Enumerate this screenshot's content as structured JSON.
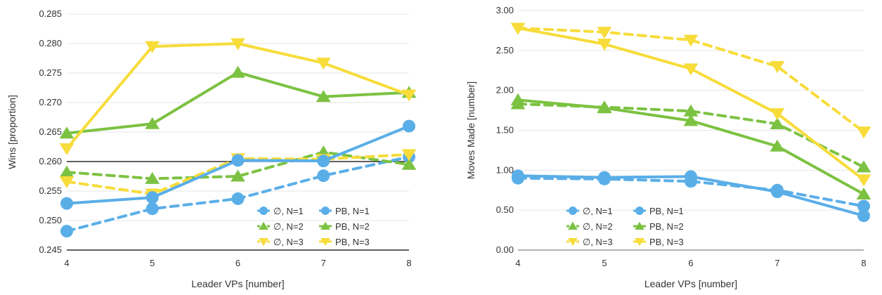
{
  "colors": {
    "blue": "#5aaee8",
    "green": "#7cc242",
    "yellow": "#f7dc3a",
    "grid": "#e6e6e6",
    "ref": "#000000"
  },
  "chart_data": [
    {
      "type": "line",
      "xlabel": "Leader VPs [number]",
      "ylabel": "Wins [proportion]",
      "x": [
        4,
        5,
        6,
        7,
        8
      ],
      "ylim": [
        0.245,
        0.285
      ],
      "yticks": [
        "0.245",
        "0.250",
        "0.255",
        "0.260",
        "0.265",
        "0.270",
        "0.275",
        "0.280",
        "0.285"
      ],
      "xticks": [
        "4",
        "5",
        "6",
        "7",
        "8"
      ],
      "reference_lines": [
        0.245,
        0.26
      ],
      "grid": true,
      "legend_position": "bottom-right",
      "series": [
        {
          "name": "∅, N=1",
          "style": "dashed",
          "marker": "circle",
          "color": "blue",
          "values": [
            0.2482,
            0.252,
            0.2537,
            0.2576,
            0.2608
          ]
        },
        {
          "name": "PB, N=1",
          "style": "solid",
          "marker": "circle",
          "color": "blue",
          "values": [
            0.2529,
            0.2539,
            0.2602,
            0.2601,
            0.266
          ]
        },
        {
          "name": "∅, N=2",
          "style": "dashed",
          "marker": "triangle-up",
          "color": "green",
          "values": [
            0.2582,
            0.2571,
            0.2575,
            0.2616,
            0.2595
          ]
        },
        {
          "name": "PB, N=2",
          "style": "solid",
          "marker": "triangle-up",
          "color": "green",
          "values": [
            0.2648,
            0.2664,
            0.2751,
            0.271,
            0.2717
          ]
        },
        {
          "name": "∅, N=3",
          "style": "dashed",
          "marker": "triangle-down",
          "color": "yellow",
          "values": [
            0.2566,
            0.2545,
            0.2605,
            0.2604,
            0.2612
          ]
        },
        {
          "name": "PB, N=3",
          "style": "solid",
          "marker": "triangle-down",
          "color": "yellow",
          "values": [
            0.2622,
            0.2795,
            0.28,
            0.2767,
            0.2713
          ]
        }
      ]
    },
    {
      "type": "line",
      "xlabel": "Leader VPs [number]",
      "ylabel": "Moves Made [number]",
      "x": [
        4,
        5,
        6,
        7,
        8
      ],
      "ylim": [
        0.0,
        3.0
      ],
      "yticks": [
        "0.00",
        "0.50",
        "1.00",
        "1.50",
        "2.00",
        "2.50",
        "3.00"
      ],
      "xticks": [
        "4",
        "5",
        "6",
        "7",
        "8"
      ],
      "reference_lines": [
        0.0
      ],
      "grid": true,
      "legend_position": "bottom-center",
      "series": [
        {
          "name": "∅, N=1",
          "style": "dashed",
          "marker": "circle",
          "color": "blue",
          "values": [
            0.9,
            0.89,
            0.86,
            0.75,
            0.55
          ]
        },
        {
          "name": "PB, N=1",
          "style": "solid",
          "marker": "circle",
          "color": "blue",
          "values": [
            0.93,
            0.91,
            0.92,
            0.73,
            0.43
          ]
        },
        {
          "name": "∅, N=2",
          "style": "dashed",
          "marker": "triangle-up",
          "color": "green",
          "values": [
            1.83,
            1.79,
            1.74,
            1.58,
            1.04
          ]
        },
        {
          "name": "PB, N=2",
          "style": "solid",
          "marker": "triangle-up",
          "color": "green",
          "values": [
            1.88,
            1.78,
            1.62,
            1.3,
            0.7
          ]
        },
        {
          "name": "∅, N=3",
          "style": "dashed",
          "marker": "triangle-down",
          "color": "yellow",
          "values": [
            2.78,
            2.73,
            2.63,
            2.3,
            1.48
          ]
        },
        {
          "name": "PB, N=3",
          "style": "solid",
          "marker": "triangle-down",
          "color": "yellow",
          "values": [
            2.78,
            2.58,
            2.27,
            1.71,
            0.88
          ]
        }
      ]
    }
  ]
}
